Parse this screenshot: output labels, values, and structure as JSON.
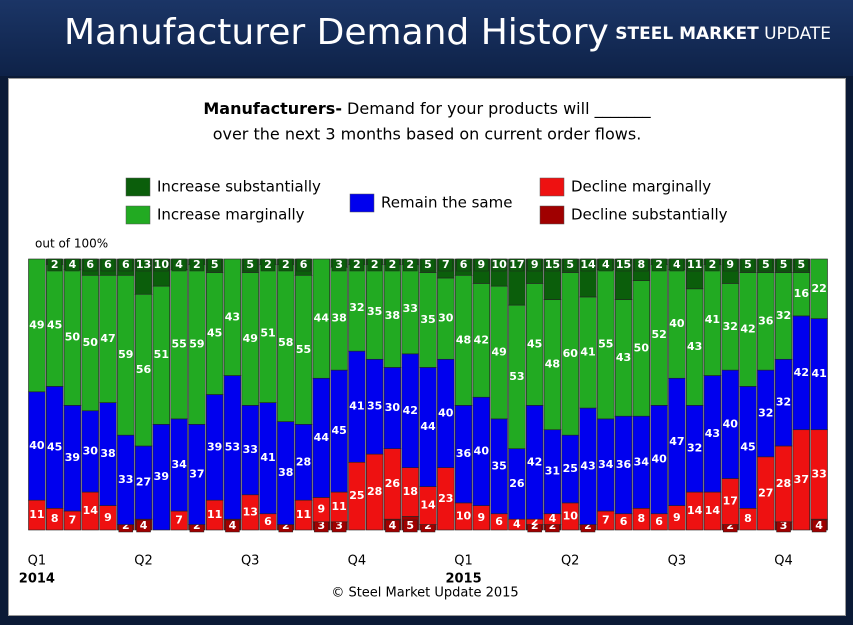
{
  "header": {
    "title": "Manufacturer Demand History",
    "logo_bold": "STEEL MARKET",
    "logo_light": "UPDATE"
  },
  "chart_data": {
    "type": "stacked_bar",
    "subtitle_bold": "Manufacturers-",
    "subtitle_line1": "Demand for your products will _______",
    "subtitle_line2": "over the next 3 months based on current order flows.",
    "y_axis_label": "out of 100%",
    "footer": "© Steel Market Update 2015",
    "ylim": [
      0,
      100
    ],
    "categories": [
      "Q1",
      null,
      null,
      null,
      null,
      null,
      "Q2",
      null,
      null,
      null,
      null,
      null,
      "Q3",
      null,
      null,
      null,
      null,
      null,
      "Q4",
      null,
      null,
      null,
      null,
      null,
      "Q1",
      null,
      null,
      null,
      null,
      null,
      "Q2",
      null,
      null,
      null,
      null,
      null,
      "Q3",
      null,
      null,
      null,
      null,
      null,
      "Q4",
      null,
      null
    ],
    "category_years": [
      "2014",
      null,
      null,
      null,
      null,
      null,
      null,
      null,
      null,
      null,
      null,
      null,
      null,
      null,
      null,
      null,
      null,
      null,
      null,
      null,
      null,
      null,
      null,
      null,
      "2015",
      null,
      null,
      null,
      null,
      null,
      null,
      null,
      null,
      null,
      null,
      null,
      null,
      null,
      null,
      null,
      null,
      null,
      null,
      null,
      null
    ],
    "series": [
      {
        "name": "Decline substantially",
        "color": "#a00000",
        "values": [
          0,
          0,
          0,
          0,
          0,
          2,
          4,
          0,
          0,
          2,
          0,
          4,
          0,
          0,
          2,
          0,
          3,
          3,
          0,
          0,
          4,
          5,
          2,
          0,
          0,
          0,
          0,
          0,
          2,
          2,
          0,
          2,
          0,
          0,
          0,
          0,
          0,
          0,
          0,
          2,
          0,
          0,
          3,
          0,
          4
        ]
      },
      {
        "name": "Decline marginally",
        "color": "#ee1111",
        "values": [
          11,
          8,
          7,
          14,
          9,
          0,
          0,
          0,
          7,
          0,
          11,
          0,
          13,
          6,
          0,
          11,
          9,
          11,
          25,
          28,
          26,
          18,
          14,
          23,
          10,
          9,
          6,
          4,
          2,
          4,
          10,
          0,
          7,
          6,
          8,
          6,
          9,
          14,
          14,
          17,
          8,
          27,
          28,
          37,
          33
        ]
      },
      {
        "name": "Remain the same",
        "color": "#0000ee",
        "values": [
          40,
          45,
          39,
          30,
          38,
          33,
          27,
          39,
          34,
          37,
          39,
          53,
          33,
          41,
          38,
          28,
          44,
          45,
          41,
          35,
          30,
          42,
          44,
          40,
          36,
          40,
          35,
          26,
          42,
          31,
          25,
          43,
          34,
          36,
          34,
          40,
          47,
          32,
          43,
          40,
          45,
          32,
          32,
          42,
          41
        ]
      },
      {
        "name": "Increase marginally",
        "color": "#22aa22",
        "values": [
          49,
          45,
          50,
          50,
          47,
          59,
          56,
          51,
          55,
          59,
          45,
          43,
          49,
          51,
          58,
          55,
          44,
          38,
          32,
          35,
          38,
          33,
          35,
          30,
          48,
          42,
          49,
          53,
          45,
          48,
          60,
          41,
          55,
          43,
          50,
          52,
          40,
          43,
          41,
          32,
          42,
          36,
          32,
          16,
          22
        ]
      },
      {
        "name": "Increase substantially",
        "color": "#0b5e0b",
        "values": [
          0,
          2,
          4,
          6,
          6,
          6,
          13,
          10,
          4,
          2,
          5,
          0,
          5,
          2,
          2,
          6,
          0,
          3,
          2,
          2,
          2,
          2,
          5,
          7,
          6,
          9,
          10,
          17,
          9,
          15,
          5,
          14,
          4,
          15,
          8,
          2,
          4,
          11,
          2,
          9,
          5,
          5,
          5,
          5,
          0
        ]
      }
    ]
  }
}
